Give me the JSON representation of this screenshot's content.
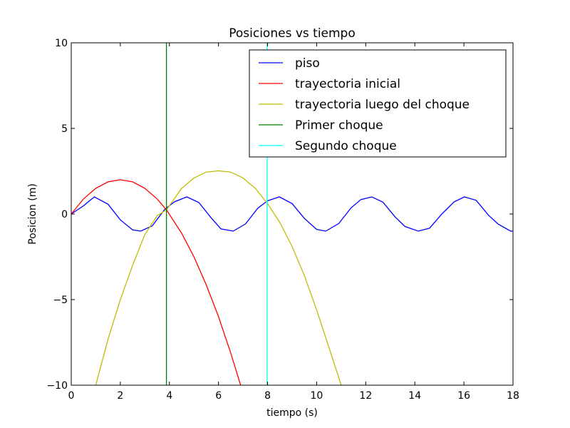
{
  "chart_data": {
    "type": "line",
    "title": "Posiciones vs tiempo",
    "xlabel": "tiempo (s)",
    "ylabel": "Posicion (m)",
    "xlim": [
      0,
      18
    ],
    "ylim": [
      -10,
      10
    ],
    "xticks": [
      0,
      2,
      4,
      6,
      8,
      10,
      12,
      14,
      16,
      18
    ],
    "yticks": [
      -10,
      -5,
      0,
      5,
      10
    ],
    "ytick_labels": [
      "−10",
      "−5",
      "0",
      "5",
      "10"
    ],
    "grid": false,
    "legend_position": "upper-right",
    "series": [
      {
        "name": "piso",
        "color": "#0000ff",
        "x": [
          0.0,
          0.5,
          0.94,
          1.5,
          2.0,
          2.5,
          2.83,
          3.3,
          3.8,
          4.2,
          4.71,
          5.2,
          5.7,
          6.1,
          6.6,
          7.1,
          7.6,
          8.0,
          8.48,
          9.0,
          9.5,
          10.0,
          10.37,
          10.9,
          11.4,
          11.8,
          12.25,
          12.7,
          13.2,
          13.6,
          14.14,
          14.6,
          15.1,
          15.6,
          16.02,
          16.5,
          17.0,
          17.4,
          17.9,
          18.0
        ],
        "y": [
          0.0,
          0.48,
          1.0,
          0.57,
          -0.34,
          -0.93,
          -1.0,
          -0.69,
          0.26,
          0.71,
          1.0,
          0.67,
          -0.22,
          -0.87,
          -1.0,
          -0.58,
          0.34,
          0.77,
          1.0,
          0.61,
          -0.26,
          -0.9,
          -1.0,
          -0.56,
          0.36,
          0.84,
          1.0,
          0.69,
          -0.18,
          -0.73,
          -1.0,
          -0.83,
          0.0,
          0.71,
          1.0,
          0.8,
          -0.07,
          -0.59,
          -1.0,
          -1.0
        ]
      },
      {
        "name": "trayectoria inicial",
        "color": "#ff0000",
        "x": [
          0.0,
          0.5,
          1.0,
          1.5,
          2.0,
          2.5,
          3.0,
          3.5,
          3.88,
          4.5,
          5.0,
          5.5,
          6.0,
          6.5,
          6.9
        ],
        "y": [
          0.0,
          0.88,
          1.5,
          1.88,
          2.0,
          1.88,
          1.5,
          0.88,
          0.24,
          -1.13,
          -2.5,
          -4.13,
          -6.0,
          -8.13,
          -10.0
        ]
      },
      {
        "name": "trayectoria luego del choque",
        "color": "#bfbf00",
        "x": [
          1.0,
          1.5,
          2.0,
          2.5,
          3.0,
          3.5,
          3.88,
          4.5,
          5.0,
          5.5,
          6.0,
          6.5,
          7.0,
          7.5,
          8.0,
          8.5,
          9.0,
          9.5,
          10.0,
          10.5,
          11.0
        ],
        "y": [
          -10.0,
          -7.3,
          -5.0,
          -3.0,
          -1.2,
          -0.1,
          0.24,
          1.5,
          2.1,
          2.45,
          2.52,
          2.45,
          2.1,
          1.5,
          0.6,
          -0.5,
          -1.9,
          -3.6,
          -5.6,
          -7.8,
          -10.0
        ]
      },
      {
        "name": "Primer choque",
        "color": "#008000",
        "x": [
          3.88,
          3.88
        ],
        "y": [
          -10,
          10
        ]
      },
      {
        "name": "Segundo choque",
        "color": "#00ffff",
        "x": [
          7.98,
          7.98
        ],
        "y": [
          -10,
          10
        ]
      }
    ]
  }
}
